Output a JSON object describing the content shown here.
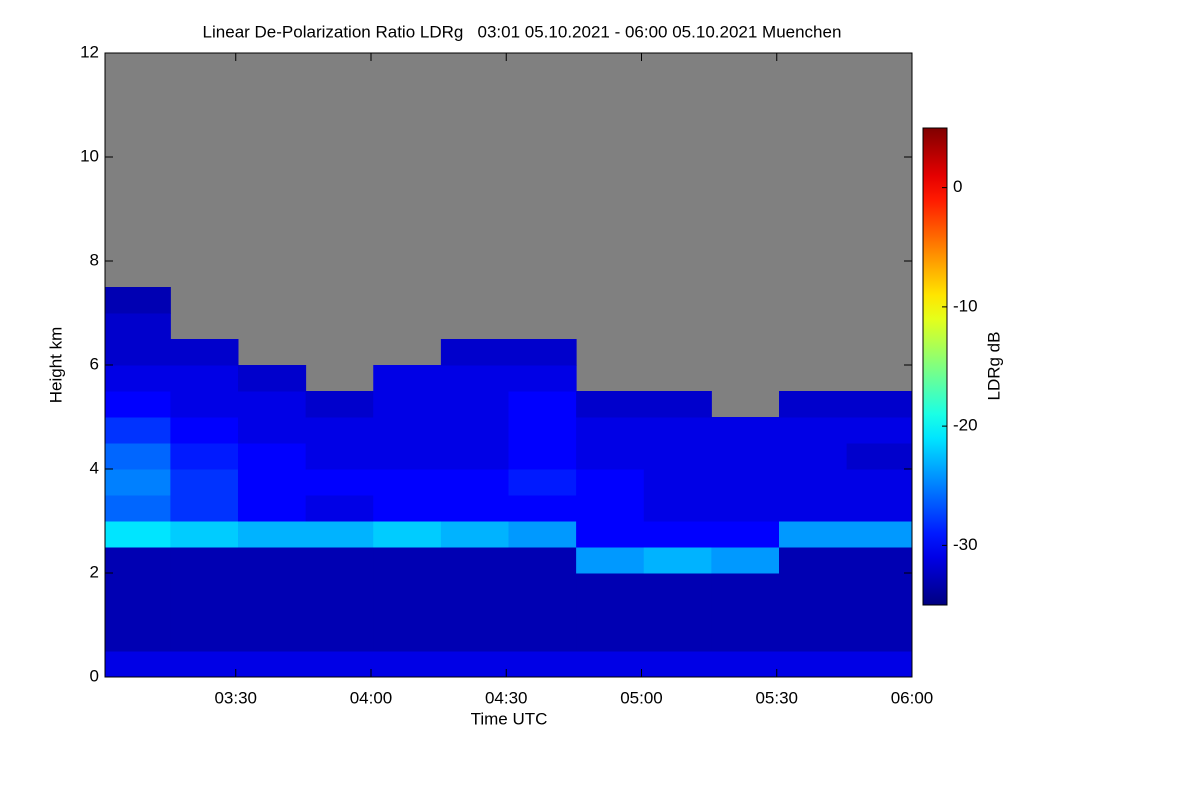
{
  "chart_data": {
    "type": "heatmap",
    "title": "Linear De-Polarization Ratio LDRg   03:01 05.10.2021 - 06:00 05.10.2021 Muenchen",
    "x_label": "Time UTC",
    "y_label": "Height km",
    "colorbar_label": "LDRg dB",
    "xlim": [
      "03:01",
      "06:00"
    ],
    "xticks": [
      "03:30",
      "04:00",
      "04:30",
      "05:00",
      "05:30",
      "06:00"
    ],
    "ylim": [
      0,
      12
    ],
    "yticks": [
      0,
      2,
      4,
      6,
      8,
      10,
      12
    ],
    "zlim": [
      -35,
      5
    ],
    "zticks": [
      0,
      -10,
      -20,
      -30
    ],
    "colormap": "jet",
    "no_data_color": "#808080",
    "x": [
      "03:08",
      "03:23",
      "03:38",
      "03:53",
      "04:08",
      "04:23",
      "04:38",
      "04:53",
      "05:08",
      "05:23",
      "05:38",
      "05:53"
    ],
    "y": [
      0.25,
      0.75,
      1.25,
      1.75,
      2.25,
      2.75,
      3.25,
      3.75,
      4.25,
      4.75,
      5.25,
      5.75,
      6.25,
      6.75,
      7.25
    ],
    "z": [
      [
        -31,
        -31,
        -31,
        -31,
        -31,
        -31,
        -31,
        -31,
        -31,
        -31,
        -31,
        -31
      ],
      [
        -33,
        -33,
        -33,
        -33,
        -33,
        -33,
        -33,
        -33,
        -33,
        -33,
        -33,
        -33
      ],
      [
        -33,
        -33,
        -33,
        -33,
        -33,
        -33,
        -33,
        -33,
        -33,
        -33,
        -33,
        -33
      ],
      [
        -33,
        -33,
        -33,
        -33,
        -33,
        -33,
        -33,
        -33,
        -33,
        -33,
        -33,
        -33
      ],
      [
        -33,
        -33,
        -33,
        -33,
        -33,
        -33,
        -33,
        -24,
        -23,
        -24,
        -33,
        -33
      ],
      [
        -21,
        -22,
        -23,
        -23,
        -22,
        -23,
        -24,
        -30,
        -30,
        -30,
        -24,
        -24
      ],
      [
        -26,
        -28,
        -30,
        -31,
        -30,
        -30,
        -30,
        -30,
        -31,
        -31,
        -31,
        -31
      ],
      [
        -25,
        -28,
        -30,
        -30,
        -30,
        -30,
        -29,
        -30,
        -31,
        -31,
        -31,
        -31
      ],
      [
        -26,
        -29,
        -30,
        -31,
        -31,
        -31,
        -30,
        -31,
        -31,
        -31,
        -31,
        -32
      ],
      [
        -28,
        -30,
        -31,
        -31,
        -31,
        -31,
        -30,
        -31,
        -31,
        -31,
        -31,
        -31
      ],
      [
        -30,
        -31,
        -31,
        -32,
        -31,
        -31,
        -30,
        -32,
        -32,
        null,
        -32,
        -32
      ],
      [
        -31,
        -31,
        -32,
        null,
        -31,
        -31,
        -31,
        null,
        null,
        null,
        null,
        null
      ],
      [
        -32,
        -32,
        null,
        null,
        null,
        -32,
        -32,
        null,
        null,
        null,
        null,
        null
      ],
      [
        -32,
        null,
        null,
        null,
        null,
        null,
        null,
        null,
        null,
        null,
        null,
        null
      ],
      [
        -33,
        null,
        null,
        null,
        null,
        null,
        null,
        null,
        null,
        null,
        null,
        null
      ]
    ]
  }
}
